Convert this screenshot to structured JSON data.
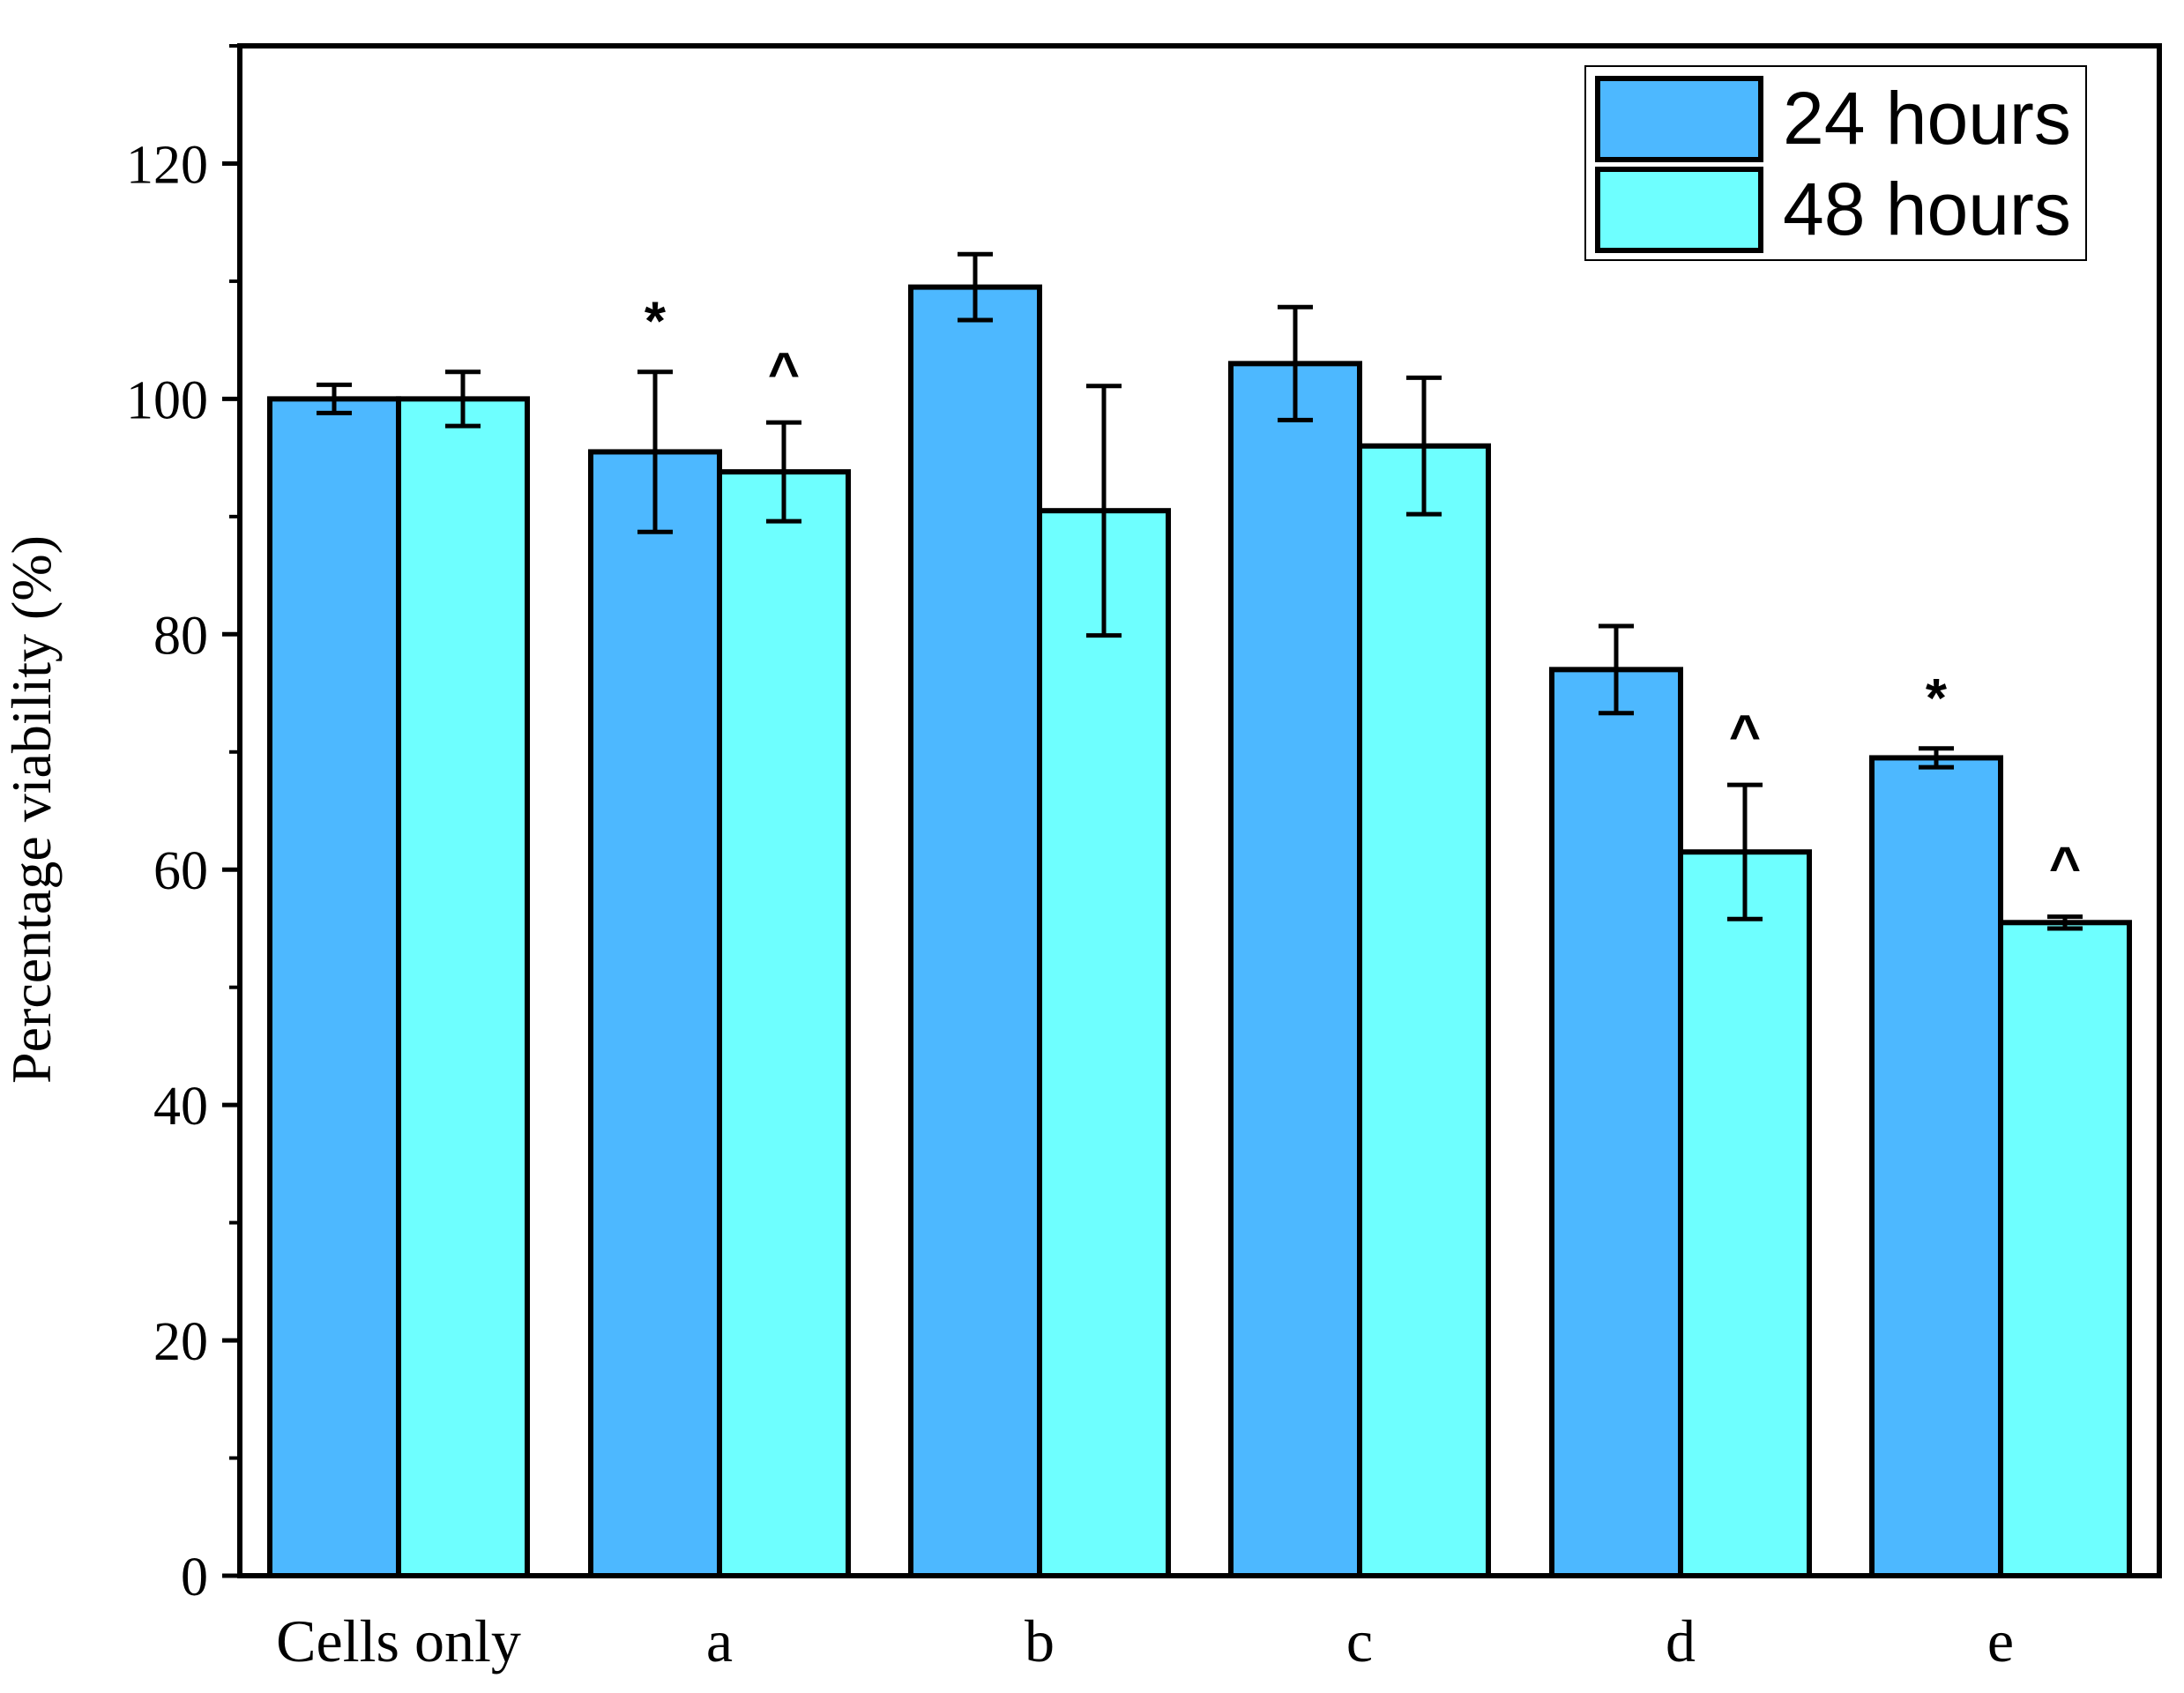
{
  "chart_data": {
    "type": "bar",
    "title": "",
    "xlabel": "",
    "ylabel": "Percentage viability (%)",
    "ylim": [
      0,
      130
    ],
    "yticks": [
      0,
      20,
      40,
      60,
      80,
      100,
      120
    ],
    "ytick_labels": [
      "0",
      "20",
      "40",
      "60",
      "80",
      "100",
      "120"
    ],
    "categories": [
      "Cells only",
      "a",
      "b",
      "c",
      "d",
      "e"
    ],
    "grid": false,
    "legend_position": "top-right",
    "series": [
      {
        "name": "24 hours",
        "color": "#4DB8FF",
        "values": [
          100,
          95.5,
          109.5,
          103,
          77,
          69.5
        ],
        "errors": [
          1.2,
          6.8,
          2.8,
          4.8,
          3.7,
          0.8
        ],
        "annotations": [
          "",
          "*",
          "",
          "",
          "",
          "*"
        ]
      },
      {
        "name": "48 hours",
        "color": "#6EFFFF",
        "values": [
          100,
          93.8,
          90.5,
          96,
          61.5,
          55.5
        ],
        "errors": [
          2.3,
          4.2,
          10.6,
          5.8,
          5.7,
          0.5
        ],
        "annotations": [
          "",
          "^",
          "",
          "",
          "^",
          "^"
        ]
      }
    ]
  }
}
